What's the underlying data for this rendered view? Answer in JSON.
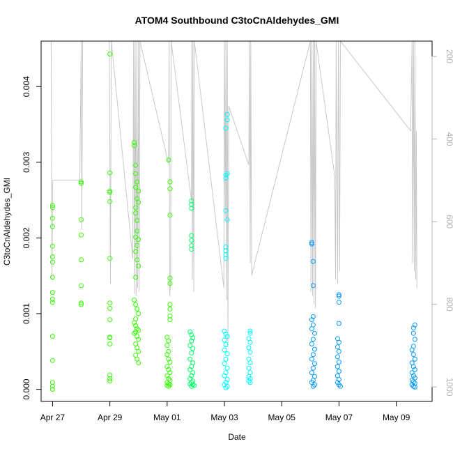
{
  "chart_data": {
    "type": "scatter",
    "title": "ATOM4 Southbound C3toCnAldehydes_GMI",
    "xlabel": "Date",
    "ylabel": "C3toCnAldehydes_GMI",
    "x_ticks": [
      "Apr 27",
      "Apr 29",
      "May 01",
      "May 03",
      "May 05",
      "May 07",
      "May 09"
    ],
    "x_tick_days": [
      27,
      29,
      31,
      33,
      35,
      37,
      39
    ],
    "xlim": [
      26.6,
      40.25
    ],
    "y_ticks": [
      "0.000",
      "0.001",
      "0.002",
      "0.003",
      "0.004"
    ],
    "y_tick_values": [
      0,
      0.001,
      0.002,
      0.003,
      0.004
    ],
    "ylim": [
      -0.00016,
      0.0046
    ],
    "y2_ticks": [
      "200",
      "400",
      "600",
      "800",
      "1000"
    ],
    "y2_tick_values": [
      200,
      400,
      600,
      800,
      1000
    ],
    "y2lim": [
      1035,
      163
    ],
    "y2_label_color": "#b3b3b3",
    "pressure_line_color": "#c8c8c8",
    "point_colors": [
      "#33ff00",
      "#00ff66",
      "#00ffff",
      "#0099ff"
    ],
    "series": [
      {
        "values": [
          [
            27.0,
            0.00243
          ],
          [
            27.0,
            0.0024
          ],
          [
            27.0,
            0.00226
          ],
          [
            27.0,
            0.00215
          ],
          [
            27.0,
            0.00189
          ],
          [
            27.0,
            0.00175
          ],
          [
            27.0,
            0.00168
          ],
          [
            27.0,
            0.00148
          ],
          [
            27.0,
            0.00128
          ],
          [
            27.0,
            0.00119
          ],
          [
            27.0,
            0.00115
          ],
          [
            27.0,
            0.0007
          ],
          [
            27.0,
            0.00038
          ],
          [
            27.0,
            9e-05
          ],
          [
            27.0,
            4e-05
          ],
          [
            27.0,
            0.0
          ],
          [
            28.0,
            0.00274
          ],
          [
            28.0,
            0.00272
          ],
          [
            28.0,
            0.00224
          ],
          [
            28.0,
            0.00204
          ],
          [
            28.0,
            0.00171
          ],
          [
            28.0,
            0.00137
          ],
          [
            28.0,
            0.00114
          ],
          [
            28.0,
            0.00112
          ],
          [
            29.0,
            0.00443
          ],
          [
            29.0,
            0.00286
          ],
          [
            29.0,
            0.00262
          ],
          [
            29.0,
            0.0026
          ],
          [
            29.0,
            0.00248
          ],
          [
            29.0,
            0.00173
          ],
          [
            29.0,
            0.00114
          ],
          [
            29.0,
            0.00107
          ],
          [
            29.0,
            0.00092
          ],
          [
            29.0,
            0.00069
          ],
          [
            29.0,
            0.00068
          ],
          [
            29.0,
            0.0006
          ],
          [
            29.0,
            0.00019
          ],
          [
            29.0,
            0.00014
          ],
          [
            29.0,
            0.00011
          ],
          [
            29.85,
            0.00326
          ],
          [
            29.85,
            0.00322
          ],
          [
            29.9,
            0.00296
          ],
          [
            29.9,
            0.00285
          ],
          [
            29.95,
            0.00274
          ],
          [
            29.9,
            0.00267
          ],
          [
            30.0,
            0.00262
          ],
          [
            29.95,
            0.00252
          ],
          [
            30.0,
            0.00247
          ],
          [
            29.9,
            0.0024
          ],
          [
            29.9,
            0.00233
          ],
          [
            29.95,
            0.00223
          ],
          [
            29.95,
            0.00209
          ],
          [
            29.9,
            0.00201
          ],
          [
            30.0,
            0.00198
          ],
          [
            29.95,
            0.0019
          ],
          [
            29.9,
            0.00182
          ],
          [
            29.95,
            0.00171
          ],
          [
            30.0,
            0.00163
          ],
          [
            29.9,
            0.00148
          ],
          [
            29.85,
            0.00118
          ],
          [
            29.9,
            0.00112
          ],
          [
            29.95,
            0.00106
          ],
          [
            30.0,
            0.001
          ],
          [
            29.9,
            0.00093
          ],
          [
            29.85,
            0.00088
          ],
          [
            29.9,
            0.00084
          ],
          [
            29.95,
            0.0008
          ],
          [
            30.0,
            0.00078
          ],
          [
            29.9,
            0.00076
          ],
          [
            29.85,
            0.00074
          ],
          [
            29.95,
            0.0007
          ],
          [
            30.0,
            0.00066
          ],
          [
            29.9,
            0.0006
          ],
          [
            29.95,
            0.00055
          ],
          [
            30.0,
            0.0005
          ],
          [
            29.9,
            0.00045
          ],
          [
            29.95,
            0.0004
          ],
          [
            30.0,
            0.00035
          ],
          [
            31.05,
            0.00303
          ],
          [
            31.1,
            0.00274
          ],
          [
            31.1,
            0.00265
          ],
          [
            31.1,
            0.0023
          ],
          [
            31.1,
            0.00147
          ],
          [
            31.1,
            0.0014
          ],
          [
            31.1,
            0.00112
          ],
          [
            31.1,
            0.00106
          ],
          [
            31.1,
            0.00097
          ],
          [
            31.1,
            0.00092
          ],
          [
            31.0,
            0.00069
          ],
          [
            31.05,
            0.00064
          ],
          [
            31.0,
            0.00058
          ],
          [
            31.05,
            0.0005
          ],
          [
            31.0,
            0.00046
          ],
          [
            31.05,
            0.0004
          ],
          [
            31.1,
            0.00036
          ],
          [
            31.0,
            0.0003
          ],
          [
            31.05,
            0.00026
          ],
          [
            31.1,
            0.00022
          ],
          [
            31.0,
            0.00018
          ],
          [
            31.05,
            0.00014
          ],
          [
            31.1,
            0.00012
          ],
          [
            31.0,
            9e-05
          ],
          [
            31.05,
            7e-05
          ],
          [
            31.1,
            6e-05
          ],
          [
            31.0,
            5e-05
          ],
          [
            31.05,
            4e-05
          ]
        ]
      },
      {
        "values": [
          [
            31.85,
            0.00249
          ],
          [
            31.85,
            0.00244
          ],
          [
            31.85,
            0.00239
          ],
          [
            31.85,
            0.00203
          ],
          [
            31.85,
            0.00197
          ],
          [
            31.85,
            0.0019
          ],
          [
            31.85,
            0.00185
          ],
          [
            31.8,
            0.00076
          ],
          [
            31.85,
            0.00072
          ],
          [
            31.9,
            0.00068
          ],
          [
            31.85,
            0.00064
          ],
          [
            31.8,
            0.00058
          ],
          [
            31.9,
            0.00054
          ],
          [
            31.85,
            0.00048
          ],
          [
            31.8,
            0.0004
          ],
          [
            31.9,
            0.00035
          ],
          [
            31.85,
            0.0003
          ],
          [
            31.8,
            0.00026
          ],
          [
            31.9,
            0.00022
          ],
          [
            31.85,
            0.00018
          ],
          [
            31.8,
            0.00014
          ],
          [
            31.9,
            0.00011
          ],
          [
            31.85,
            9e-05
          ],
          [
            31.8,
            7e-05
          ],
          [
            31.9,
            6e-05
          ],
          [
            31.95,
            5e-05
          ],
          [
            31.85,
            4e-05
          ]
        ]
      },
      {
        "values": [
          [
            33.1,
            0.00363
          ],
          [
            33.1,
            0.00356
          ],
          [
            33.05,
            0.00345
          ],
          [
            33.1,
            0.00285
          ],
          [
            33.05,
            0.00283
          ],
          [
            33.05,
            0.00279
          ],
          [
            33.05,
            0.00236
          ],
          [
            33.1,
            0.00224
          ],
          [
            33.05,
            0.00188
          ],
          [
            33.05,
            0.00183
          ],
          [
            33.05,
            0.00178
          ],
          [
            33.05,
            0.00173
          ],
          [
            33.0,
            0.00077
          ],
          [
            33.05,
            0.00073
          ],
          [
            33.1,
            0.0007
          ],
          [
            33.0,
            0.00065
          ],
          [
            33.05,
            0.00059
          ],
          [
            33.0,
            0.00052
          ],
          [
            33.1,
            0.00047
          ],
          [
            33.05,
            0.0004
          ],
          [
            33.0,
            0.00034
          ],
          [
            33.1,
            0.00028
          ],
          [
            33.05,
            0.00022
          ],
          [
            33.0,
            0.00018
          ],
          [
            33.1,
            0.00013
          ],
          [
            33.05,
            9e-05
          ],
          [
            33.0,
            6e-05
          ],
          [
            33.1,
            4e-05
          ],
          [
            33.05,
            2e-05
          ],
          [
            33.9,
            0.00077
          ],
          [
            33.9,
            0.00074
          ],
          [
            33.85,
            0.00067
          ],
          [
            33.9,
            0.00062
          ],
          [
            33.85,
            0.00055
          ],
          [
            33.9,
            0.00049
          ],
          [
            33.85,
            0.0004
          ],
          [
            33.9,
            0.00035
          ],
          [
            33.85,
            0.00028
          ],
          [
            33.9,
            0.00022
          ],
          [
            33.85,
            0.00017
          ],
          [
            33.9,
            0.00014
          ],
          [
            33.85,
            0.00011
          ],
          [
            33.9,
            9e-05
          ]
        ]
      },
      {
        "values": [
          [
            36.05,
            0.00194
          ],
          [
            36.05,
            0.00192
          ],
          [
            36.1,
            0.00169
          ],
          [
            36.1,
            0.00137
          ],
          [
            36.1,
            0.00096
          ],
          [
            36.05,
            0.00092
          ],
          [
            36.1,
            0.00085
          ],
          [
            36.05,
            0.0008
          ],
          [
            36.15,
            0.00074
          ],
          [
            36.1,
            0.00066
          ],
          [
            36.05,
            0.0006
          ],
          [
            36.15,
            0.00053
          ],
          [
            36.1,
            0.00046
          ],
          [
            36.05,
            0.0004
          ],
          [
            36.15,
            0.00034
          ],
          [
            36.1,
            0.00028
          ],
          [
            36.05,
            0.00022
          ],
          [
            36.15,
            0.00017
          ],
          [
            36.1,
            0.00012
          ],
          [
            36.05,
            9e-05
          ],
          [
            36.15,
            6e-05
          ],
          [
            36.1,
            4e-05
          ],
          [
            37.0,
            0.00125
          ],
          [
            37.0,
            0.00123
          ],
          [
            37.0,
            0.00115
          ],
          [
            37.0,
            0.00087
          ],
          [
            36.95,
            0.00067
          ],
          [
            37.0,
            0.00062
          ],
          [
            36.95,
            0.00056
          ],
          [
            37.0,
            0.0005
          ],
          [
            36.95,
            0.00043
          ],
          [
            37.0,
            0.00036
          ],
          [
            36.95,
            0.0003
          ],
          [
            37.0,
            0.00024
          ],
          [
            36.95,
            0.00018
          ],
          [
            37.0,
            0.00013
          ],
          [
            36.95,
            9e-05
          ],
          [
            37.0,
            6e-05
          ],
          [
            37.05,
            4e-05
          ],
          [
            39.65,
            0.00085
          ],
          [
            39.6,
            0.00081
          ],
          [
            39.6,
            0.00074
          ],
          [
            39.65,
            0.00066
          ],
          [
            39.6,
            0.00057
          ],
          [
            39.55,
            0.00052
          ],
          [
            39.6,
            0.00046
          ],
          [
            39.65,
            0.0004
          ],
          [
            39.55,
            0.00035
          ],
          [
            39.6,
            0.0003
          ],
          [
            39.65,
            0.00026
          ],
          [
            39.55,
            0.00022
          ],
          [
            39.6,
            0.00018
          ],
          [
            39.65,
            0.00015
          ],
          [
            39.55,
            0.00012
          ],
          [
            39.6,
            0.0001
          ],
          [
            39.65,
            8e-05
          ],
          [
            39.55,
            6e-05
          ],
          [
            39.6,
            4e-05
          ],
          [
            39.65,
            3e-05
          ]
        ]
      }
    ],
    "pressure": [
      [
        26.95,
        163
      ],
      [
        26.98,
        740
      ],
      [
        27.0,
        500
      ],
      [
        27.95,
        500
      ],
      [
        28.0,
        163
      ],
      [
        28.02,
        620
      ],
      [
        28.05,
        163
      ],
      [
        28.98,
        163
      ],
      [
        29.02,
        750
      ],
      [
        29.05,
        163
      ],
      [
        29.8,
        690
      ],
      [
        29.83,
        163
      ],
      [
        29.86,
        775
      ],
      [
        29.88,
        163
      ],
      [
        29.92,
        780
      ],
      [
        29.94,
        163
      ],
      [
        29.97,
        760
      ],
      [
        30.0,
        163
      ],
      [
        30.02,
        770
      ],
      [
        30.05,
        163
      ],
      [
        31.05,
        460
      ],
      [
        31.07,
        163
      ],
      [
        31.09,
        780
      ],
      [
        31.12,
        740
      ],
      [
        31.14,
        163
      ],
      [
        31.85,
        550
      ],
      [
        31.86,
        163
      ],
      [
        31.88,
        740
      ],
      [
        31.9,
        163
      ],
      [
        31.93,
        770
      ],
      [
        31.95,
        163
      ],
      [
        32.98,
        760
      ],
      [
        33.0,
        163
      ],
      [
        33.03,
        590
      ],
      [
        33.05,
        163
      ],
      [
        33.08,
        790
      ],
      [
        33.1,
        163
      ],
      [
        33.12,
        900
      ],
      [
        33.15,
        320
      ],
      [
        33.85,
        463
      ],
      [
        33.87,
        163
      ],
      [
        33.9,
        700
      ],
      [
        33.92,
        163
      ],
      [
        33.95,
        730
      ],
      [
        36.0,
        163
      ],
      [
        36.02,
        770
      ],
      [
        36.05,
        163
      ],
      [
        36.08,
        780
      ],
      [
        36.1,
        163
      ],
      [
        36.13,
        800
      ],
      [
        36.15,
        163
      ],
      [
        36.18,
        810
      ],
      [
        36.2,
        163
      ],
      [
        36.85,
        490
      ],
      [
        36.88,
        740
      ],
      [
        36.9,
        163
      ],
      [
        36.95,
        750
      ],
      [
        36.98,
        163
      ],
      [
        37.02,
        720
      ],
      [
        37.05,
        163
      ],
      [
        39.5,
        380
      ],
      [
        39.55,
        163
      ],
      [
        39.57,
        700
      ],
      [
        39.6,
        163
      ],
      [
        39.63,
        720
      ],
      [
        39.65,
        163
      ],
      [
        39.68,
        740
      ],
      [
        39.7,
        380
      ],
      [
        39.72,
        760
      ]
    ]
  }
}
